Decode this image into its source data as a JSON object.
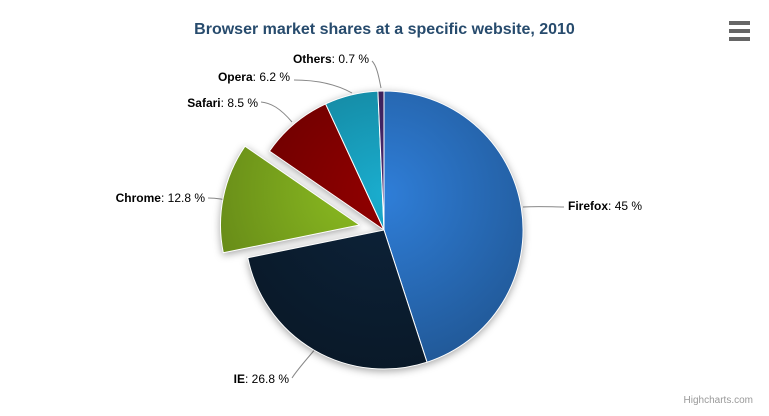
{
  "header": {
    "title": "Browser market shares at a specific website, 2010"
  },
  "toolbar": {
    "menu_icon": "hamburger-icon"
  },
  "credits": {
    "label": "Highcharts.com"
  },
  "styles": {
    "background": "#ffffff",
    "title_color": "#274b6d",
    "connector_color": "#888888",
    "credit_color": "#999999",
    "menu_icon_color": "#666666",
    "slice_border_color": "#ffffff"
  },
  "chart_data": {
    "type": "pie",
    "title": "Browser market shares at a specific website, 2010",
    "unit": "%",
    "label_separator": ": ",
    "legend": "none",
    "start_angle_deg": 0,
    "direction": "clockwise",
    "slices": [
      {
        "name": "Firefox",
        "value": 45,
        "percent_label": "45 %",
        "color": "#2f7ed8",
        "sliced": false
      },
      {
        "name": "IE",
        "value": 26.8,
        "percent_label": "26.8 %",
        "color": "#0d233a",
        "sliced": false
      },
      {
        "name": "Chrome",
        "value": 12.8,
        "percent_label": "12.8 %",
        "color": "#8bbc21",
        "sliced": true
      },
      {
        "name": "Safari",
        "value": 8.5,
        "percent_label": "8.5 %",
        "color": "#910000",
        "sliced": false
      },
      {
        "name": "Opera",
        "value": 6.2,
        "percent_label": "6.2 %",
        "color": "#1aadce",
        "sliced": false
      },
      {
        "name": "Others",
        "value": 0.7,
        "percent_label": "0.7 %",
        "color": "#492970",
        "sliced": false
      }
    ]
  }
}
